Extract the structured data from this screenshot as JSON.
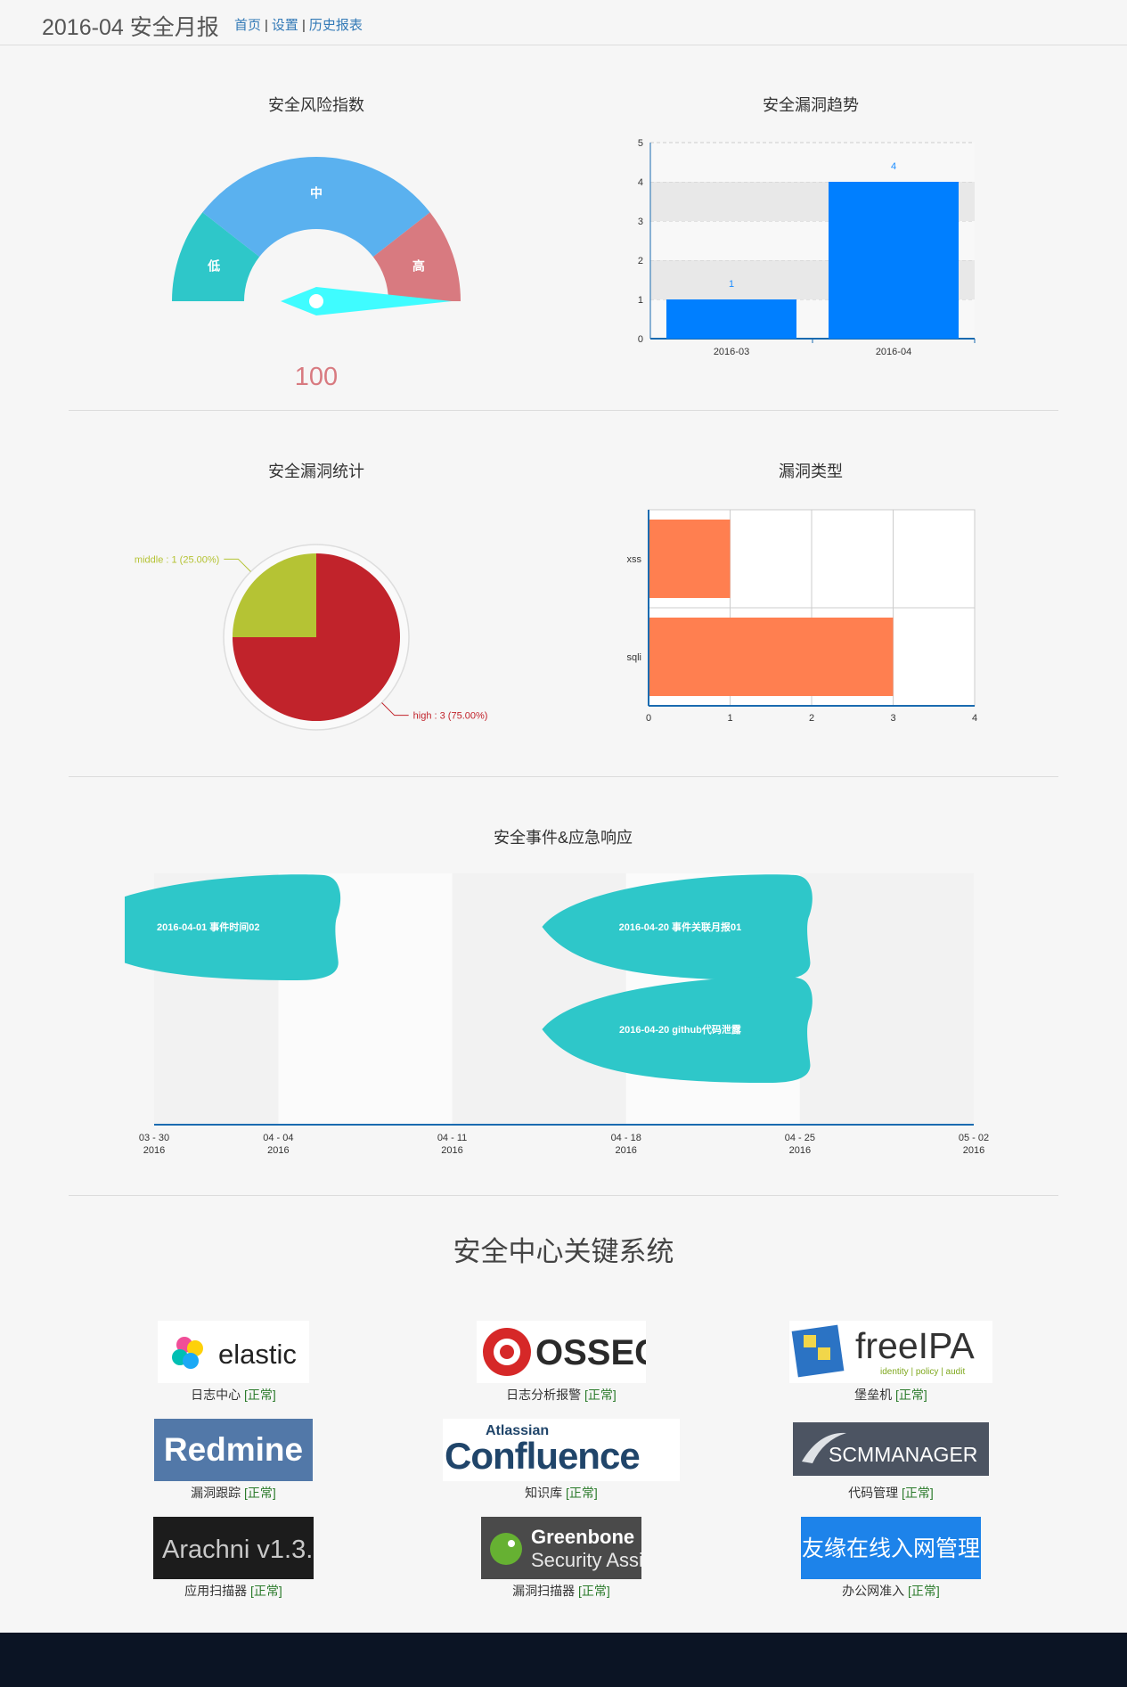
{
  "header": {
    "title": "2016-04 安全月报",
    "nav": [
      "首页",
      "设置",
      "历史报表"
    ]
  },
  "gauge": {
    "title": "安全风险指数",
    "bands": [
      "低",
      "中",
      "高"
    ],
    "value": 100,
    "value_text": "100",
    "colors": {
      "low": "#2ec7c9",
      "mid": "#5ab1ef",
      "high": "#d87a80",
      "pointer": "#3ffcff",
      "value": "#d87a80"
    }
  },
  "trend": {
    "title": "安全漏洞趋势",
    "chart_data": {
      "type": "bar",
      "categories": [
        "2016-03",
        "2016-04"
      ],
      "values": [
        1,
        4
      ],
      "ylim": [
        0,
        5
      ],
      "yticks": [
        0,
        1,
        2,
        3,
        4,
        5
      ],
      "color": "#007fff",
      "label_color": "#1a8cff"
    }
  },
  "stats": {
    "title": "安全漏洞统计",
    "chart_data": {
      "type": "pie",
      "slices": [
        {
          "name": "high",
          "value": 3,
          "label": "high : 3 (75.00%)",
          "color": "#c1232b"
        },
        {
          "name": "middle",
          "value": 1,
          "label": "middle : 1 (25.00%)",
          "color": "#b5c334"
        }
      ]
    }
  },
  "types": {
    "title": "漏洞类型",
    "chart_data": {
      "type": "bar",
      "orientation": "horizontal",
      "categories": [
        "xss",
        "sqli"
      ],
      "values": [
        1,
        3
      ],
      "xlim": [
        0,
        4
      ],
      "xticks": [
        0,
        1,
        2,
        3,
        4
      ],
      "color": "#ff7f50"
    }
  },
  "events": {
    "title": "安全事件&应急响应",
    "color": "#2ec7c9",
    "items": [
      {
        "label": "2016-04-01 事件时间02",
        "date": "2016-04-01"
      },
      {
        "label": "2016-04-20 事件关联月报01",
        "date": "2016-04-20"
      },
      {
        "label": "2016-04-20 github代码泄露",
        "date": "2016-04-20"
      }
    ],
    "ticks": [
      {
        "md": "03 - 30",
        "y": "2016"
      },
      {
        "md": "04 - 04",
        "y": "2016"
      },
      {
        "md": "04 - 11",
        "y": "2016"
      },
      {
        "md": "04 - 18",
        "y": "2016"
      },
      {
        "md": "04 - 25",
        "y": "2016"
      },
      {
        "md": "05 - 02",
        "y": "2016"
      }
    ]
  },
  "systems": {
    "title": "安全中心关键系统",
    "status": "[正常]",
    "items": [
      {
        "logo": "elastic",
        "name": "日志中心"
      },
      {
        "logo": "OSSEC",
        "name": "日志分析报警"
      },
      {
        "logo": "freeIPA",
        "logo_sub": "identity | policy | audit",
        "name": "堡垒机"
      },
      {
        "logo": "Redmine",
        "name": "漏洞跟踪"
      },
      {
        "logo": "Confluence",
        "logo_top": "Atlassian",
        "name": "知识库"
      },
      {
        "logo": "SCMMANAGER",
        "name": "代码管理"
      },
      {
        "logo": "Arachni v1.3.",
        "name": "应用扫描器"
      },
      {
        "logo": "Greenbone",
        "logo_sub": "Security Assis",
        "name": "漏洞扫描器"
      },
      {
        "logo": "友缘在线入网管理",
        "name": "办公网准入"
      }
    ]
  }
}
